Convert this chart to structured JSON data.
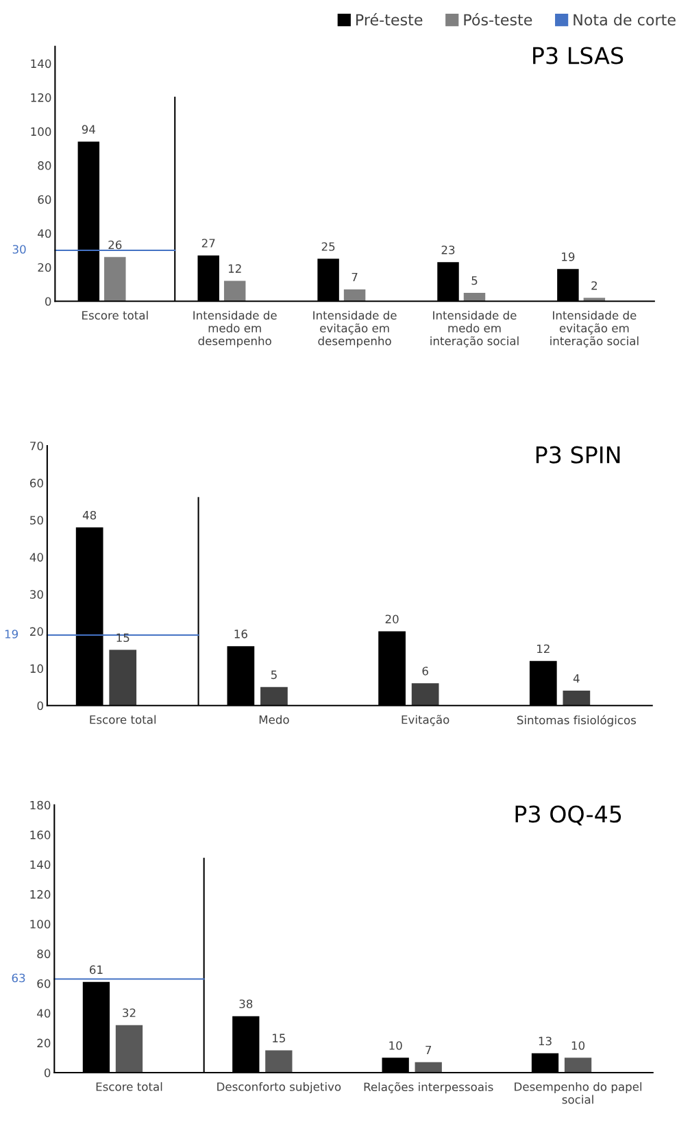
{
  "chart_data": [
    {
      "type": "bar",
      "title": "P3 LSAS",
      "categories": [
        "Escore total",
        "Intensidade de\nmedo em\ndesempenho",
        "Intensidade de\nevitação em\ndesempenho",
        "Intensidade de\nmedo em\ninteração social",
        "Intensidade de\nevitação em\ninteração social"
      ],
      "series": [
        {
          "name": "Pré-teste",
          "color": "#000000",
          "values": [
            94,
            27,
            25,
            23,
            19
          ]
        },
        {
          "name": "Pós-teste",
          "color": "#808080",
          "values": [
            26,
            12,
            7,
            5,
            2
          ]
        }
      ],
      "ylim": [
        0,
        150
      ],
      "yticks": [
        0,
        20,
        40,
        60,
        80,
        100,
        120,
        140
      ],
      "data_labels": true,
      "grid": false,
      "legend": "top right",
      "ref_lines": [
        {
          "axis": "y",
          "value": 30,
          "label": "30",
          "color": "#4472c4"
        }
      ],
      "annotations": [
        "Nota de corte"
      ]
    },
    {
      "type": "bar",
      "title": "P3 SPIN",
      "categories": [
        "Escore total",
        "Medo",
        "Evitação",
        "Sintomas fisiológicos"
      ],
      "series": [
        {
          "color": "#000000",
          "values": [
            48,
            16,
            20,
            12
          ]
        },
        {
          "color": "#404040",
          "values": [
            15,
            5,
            6,
            4
          ]
        }
      ],
      "ylim": [
        0,
        70
      ],
      "yticks": [
        0,
        10,
        20,
        30,
        40,
        50,
        60,
        70
      ],
      "data_labels": true,
      "grid": false,
      "ref_lines": [
        {
          "axis": "y",
          "value": 19,
          "label": "19",
          "color": "#4472c4"
        }
      ]
    },
    {
      "type": "bar",
      "title": "P3 OQ-45",
      "categories": [
        "Escore total",
        "Desconforto subjetivo",
        "Relações interpessoais",
        "Desempenho do papel\nsocial"
      ],
      "series": [
        {
          "color": "#000000",
          "values": [
            61,
            38,
            10,
            13
          ]
        },
        {
          "color": "#595959",
          "values": [
            32,
            15,
            7,
            10
          ]
        }
      ],
      "ylim": [
        0,
        180
      ],
      "yticks": [
        0,
        20,
        40,
        60,
        80,
        100,
        120,
        140,
        160,
        180
      ],
      "data_labels": true,
      "grid": false,
      "ref_lines": [
        {
          "axis": "y",
          "value": 63,
          "label": "63",
          "color": "#4472c4"
        }
      ]
    }
  ]
}
